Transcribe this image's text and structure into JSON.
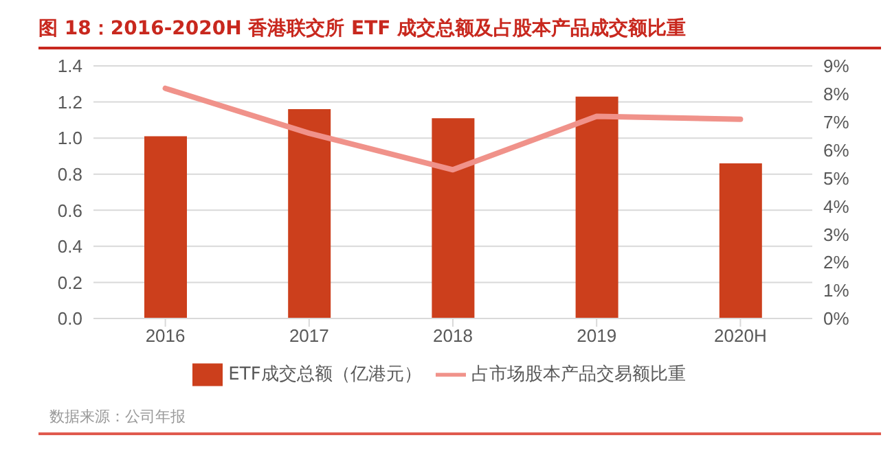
{
  "chart_data": {
    "type": "bar",
    "title": "图 18：2016-2020H 香港联交所 ETF 成交总额及占股本产品成交额比重",
    "categories": [
      "2016",
      "2017",
      "2018",
      "2019",
      "2020H"
    ],
    "series": [
      {
        "name": "ETF成交总额（亿港元）",
        "color": "#cc3f1c",
        "values": [
          1.01,
          1.16,
          1.11,
          1.23,
          0.86
        ]
      },
      {
        "name": "占市场股本产品交易额比重",
        "type": "line",
        "axis": "y2",
        "color": "#f0928a",
        "values": [
          8.2,
          6.6,
          5.3,
          7.2,
          7.1
        ]
      }
    ],
    "ylim": [
      0,
      1.4
    ],
    "yticks": [
      {
        "value": 0,
        "label": "0.0"
      },
      0.2,
      0.4,
      0.6,
      0.8,
      {
        "value": 1,
        "label": "1.0"
      },
      1.2,
      1.4
    ],
    "y2lim": [
      0,
      9
    ],
    "y2ticks": [
      {
        "value": 0,
        "label": "0%"
      },
      {
        "value": 1,
        "label": "1%"
      },
      {
        "value": 2,
        "label": "2%"
      },
      {
        "value": 3,
        "label": "3%"
      },
      {
        "value": 4,
        "label": "4%"
      },
      {
        "value": 5,
        "label": "5%"
      },
      {
        "value": 6,
        "label": "6%"
      },
      {
        "value": 7,
        "label": "7%"
      },
      {
        "value": 8,
        "label": "8%"
      },
      {
        "value": 9,
        "label": "9%"
      }
    ],
    "grid": "y",
    "legend": "bottom",
    "marker": "none",
    "annotations": [
      "数据来源：公司年报"
    ]
  }
}
